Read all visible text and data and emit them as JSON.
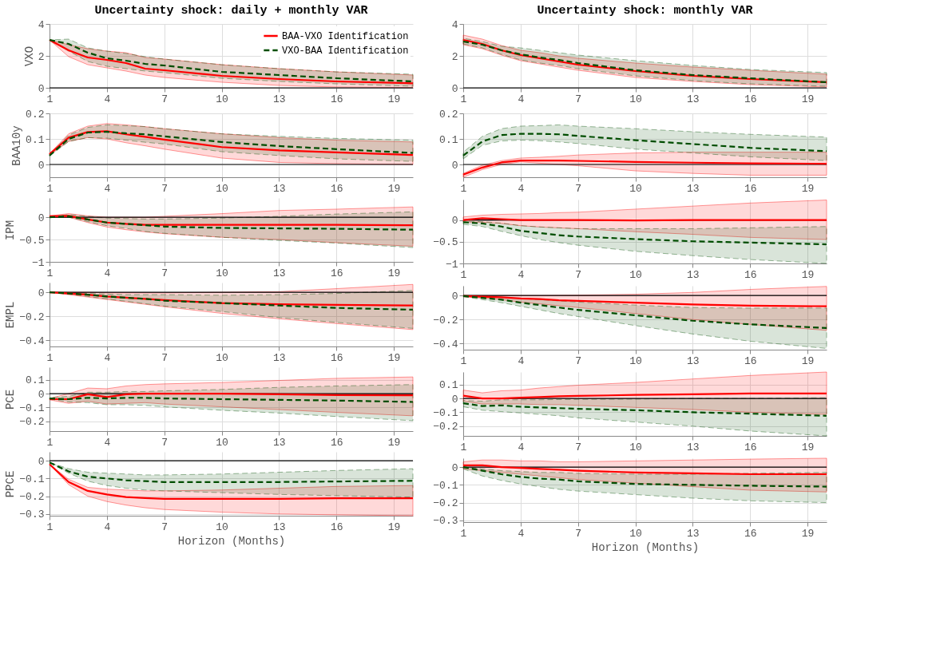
{
  "chart_data": [
    {
      "type": "line",
      "title": "Uncertainty shock: daily + monthly VAR",
      "ylabel": "VXO",
      "x": [
        1,
        2,
        3,
        4,
        5,
        6,
        7,
        10,
        13,
        16,
        20
      ],
      "xlim": [
        1,
        20
      ],
      "xticks": [
        1,
        4,
        7,
        10,
        13,
        16,
        19
      ],
      "ylim": [
        0,
        4
      ],
      "yticks": [
        0,
        2,
        4
      ],
      "grid": true,
      "legend": "top right",
      "ref_lines": [
        {
          "axis": "y",
          "value": 0,
          "color": "#000000"
        }
      ],
      "series": [
        {
          "name": "BAA-VXO Identification",
          "color": "#ff0000",
          "line_style": "solid",
          "values": [
            3.0,
            2.35,
            1.9,
            1.75,
            1.55,
            1.2,
            1.1,
            0.75,
            0.55,
            0.4,
            0.28
          ],
          "lower": [
            3.0,
            1.95,
            1.45,
            1.25,
            1.05,
            0.8,
            0.65,
            0.35,
            0.15,
            0.05,
            0.02
          ],
          "upper": [
            3.0,
            2.7,
            2.45,
            2.3,
            2.2,
            1.9,
            1.8,
            1.45,
            1.2,
            1.0,
            0.8
          ]
        },
        {
          "name": "VXO-BAA Identification",
          "color": "#004d00",
          "line_style": "dashed",
          "values": [
            3.0,
            2.75,
            2.2,
            1.85,
            1.7,
            1.5,
            1.4,
            1.0,
            0.8,
            0.6,
            0.4
          ],
          "lower": [
            3.0,
            2.3,
            1.65,
            1.35,
            1.2,
            1.05,
            0.95,
            0.6,
            0.4,
            0.25,
            0.1
          ],
          "upper": [
            3.0,
            3.05,
            2.5,
            2.3,
            2.15,
            1.95,
            1.8,
            1.45,
            1.2,
            1.0,
            0.85
          ]
        }
      ]
    },
    {
      "type": "line",
      "ylabel": "BAA10y",
      "x": [
        1,
        2,
        3,
        4,
        5,
        6,
        7,
        10,
        13,
        16,
        20
      ],
      "xlim": [
        1,
        20
      ],
      "xticks": [
        1,
        4,
        7,
        10,
        13,
        16,
        19
      ],
      "ylim": [
        -0.05,
        0.2
      ],
      "yticks": [
        0,
        0.1,
        0.2
      ],
      "grid": true,
      "ref_lines": [
        {
          "axis": "y",
          "value": 0,
          "color": "#000000"
        }
      ],
      "series": [
        {
          "color": "#ff0000",
          "line_style": "solid",
          "values": [
            0.04,
            0.105,
            0.127,
            0.13,
            0.118,
            0.108,
            0.097,
            0.068,
            0.055,
            0.047,
            0.037
          ],
          "lower": [
            0.037,
            0.09,
            0.105,
            0.1,
            0.085,
            0.073,
            0.06,
            0.025,
            0.008,
            0.003,
            0.0
          ],
          "upper": [
            0.042,
            0.12,
            0.15,
            0.16,
            0.155,
            0.148,
            0.14,
            0.12,
            0.105,
            0.095,
            0.088
          ]
        },
        {
          "color": "#004d00",
          "line_style": "dashed",
          "values": [
            0.035,
            0.1,
            0.125,
            0.128,
            0.122,
            0.118,
            0.11,
            0.088,
            0.072,
            0.06,
            0.045
          ],
          "lower": [
            0.033,
            0.09,
            0.105,
            0.103,
            0.095,
            0.087,
            0.08,
            0.05,
            0.035,
            0.022,
            0.012
          ],
          "upper": [
            0.037,
            0.115,
            0.145,
            0.155,
            0.152,
            0.148,
            0.14,
            0.12,
            0.11,
            0.102,
            0.095
          ]
        }
      ]
    },
    {
      "type": "line",
      "ylabel": "IPM",
      "x": [
        1,
        2,
        3,
        4,
        5,
        6,
        7,
        10,
        13,
        16,
        20
      ],
      "xlim": [
        1,
        20
      ],
      "xticks": [
        1,
        4,
        7,
        10,
        13,
        16,
        19
      ],
      "ylim": [
        -1,
        0.43
      ],
      "yticks": [
        -1,
        -0.5,
        0
      ],
      "grid": true,
      "ref_lines": [
        {
          "axis": "y",
          "value": 0,
          "color": "#000000"
        }
      ],
      "series": [
        {
          "color": "#ff0000",
          "line_style": "solid",
          "values": [
            0.02,
            0.03,
            -0.05,
            -0.12,
            -0.15,
            -0.17,
            -0.17,
            -0.17,
            -0.17,
            -0.17,
            -0.18
          ],
          "lower": [
            0.0,
            0.0,
            -0.12,
            -0.22,
            -0.28,
            -0.33,
            -0.37,
            -0.45,
            -0.5,
            -0.57,
            -0.65
          ],
          "upper": [
            0.03,
            0.08,
            0.03,
            0.0,
            0.0,
            0.0,
            0.02,
            0.08,
            0.15,
            0.18,
            0.23
          ]
        },
        {
          "color": "#004d00",
          "line_style": "dashed",
          "values": [
            0.0,
            0.02,
            -0.05,
            -0.12,
            -0.15,
            -0.18,
            -0.21,
            -0.24,
            -0.25,
            -0.26,
            -0.28
          ],
          "lower": [
            0.0,
            0.0,
            -0.1,
            -0.19,
            -0.25,
            -0.32,
            -0.36,
            -0.45,
            -0.52,
            -0.58,
            -0.68
          ],
          "upper": [
            0.0,
            0.06,
            0.02,
            -0.02,
            -0.03,
            -0.04,
            -0.04,
            -0.02,
            0.02,
            0.07,
            0.12
          ]
        }
      ]
    },
    {
      "type": "line",
      "ylabel": "EMPL",
      "x": [
        1,
        2,
        3,
        4,
        5,
        6,
        7,
        10,
        13,
        16,
        20
      ],
      "xlim": [
        1,
        20
      ],
      "xticks": [
        1,
        4,
        7,
        10,
        13,
        16,
        19
      ],
      "ylim": [
        -0.45,
        0.08
      ],
      "yticks": [
        -0.4,
        -0.2,
        0
      ],
      "grid": true,
      "ref_lines": [
        {
          "axis": "y",
          "value": 0,
          "color": "#000000"
        }
      ],
      "series": [
        {
          "color": "#ff0000",
          "line_style": "solid",
          "values": [
            0,
            -0.01,
            -0.02,
            -0.035,
            -0.045,
            -0.055,
            -0.065,
            -0.09,
            -0.1,
            -0.105,
            -0.11
          ],
          "lower": [
            0,
            -0.02,
            -0.04,
            -0.06,
            -0.08,
            -0.1,
            -0.12,
            -0.175,
            -0.22,
            -0.26,
            -0.31
          ],
          "upper": [
            0,
            0,
            0,
            -0.005,
            -0.005,
            -0.005,
            -0.005,
            0,
            0.005,
            0.03,
            0.065
          ]
        },
        {
          "color": "#004d00",
          "line_style": "dashed",
          "values": [
            0,
            -0.01,
            -0.02,
            -0.035,
            -0.045,
            -0.055,
            -0.07,
            -0.09,
            -0.11,
            -0.13,
            -0.145
          ],
          "lower": [
            0,
            -0.015,
            -0.035,
            -0.055,
            -0.075,
            -0.095,
            -0.115,
            -0.16,
            -0.21,
            -0.25,
            -0.3
          ],
          "upper": [
            0,
            -0.005,
            -0.01,
            -0.015,
            -0.02,
            -0.02,
            -0.02,
            -0.025,
            -0.02,
            -0.01,
            0.015
          ]
        }
      ]
    },
    {
      "type": "line",
      "ylabel": "PCE",
      "x": [
        1,
        2,
        3,
        4,
        5,
        6,
        7,
        10,
        13,
        16,
        20
      ],
      "xlim": [
        1,
        20
      ],
      "xticks": [
        1,
        4,
        7,
        10,
        13,
        16,
        19
      ],
      "ylim": [
        -0.27,
        0.19
      ],
      "yticks": [
        -0.2,
        -0.1,
        0,
        0.1
      ],
      "grid": true,
      "ref_lines": [
        {
          "axis": "y",
          "value": 0,
          "color": "#000000"
        }
      ],
      "series": [
        {
          "color": "#ff0000",
          "line_style": "solid",
          "values": [
            -0.04,
            -0.04,
            -0.005,
            -0.025,
            -0.005,
            0.0,
            0.0,
            0.0,
            -0.005,
            -0.01,
            -0.012
          ],
          "lower": [
            -0.045,
            -0.07,
            -0.055,
            -0.075,
            -0.07,
            -0.065,
            -0.075,
            -0.095,
            -0.115,
            -0.135,
            -0.16
          ],
          "upper": [
            -0.035,
            0.0,
            0.04,
            0.035,
            0.055,
            0.065,
            0.07,
            0.08,
            0.095,
            0.11,
            0.12
          ]
        },
        {
          "color": "#004d00",
          "line_style": "dashed",
          "values": [
            -0.035,
            -0.04,
            -0.03,
            -0.035,
            -0.03,
            -0.03,
            -0.035,
            -0.04,
            -0.045,
            -0.05,
            -0.06
          ],
          "lower": [
            -0.04,
            -0.06,
            -0.065,
            -0.08,
            -0.08,
            -0.085,
            -0.095,
            -0.12,
            -0.14,
            -0.165,
            -0.195
          ],
          "upper": [
            -0.03,
            -0.02,
            0.01,
            0.01,
            0.015,
            0.015,
            0.02,
            0.03,
            0.045,
            0.055,
            0.065
          ]
        }
      ]
    },
    {
      "type": "line",
      "ylabel": "PPCE",
      "xlabel": "Horizon (Months)",
      "x": [
        1,
        2,
        3,
        4,
        5,
        6,
        7,
        10,
        13,
        16,
        20
      ],
      "xlim": [
        1,
        20
      ],
      "xticks": [
        1,
        4,
        7,
        10,
        13,
        16,
        19
      ],
      "ylim": [
        -0.31,
        0.05
      ],
      "yticks": [
        -0.3,
        -0.2,
        -0.1,
        0
      ],
      "grid": true,
      "ref_lines": [
        {
          "axis": "y",
          "value": 0,
          "color": "#000000"
        }
      ],
      "series": [
        {
          "color": "#ff0000",
          "line_style": "solid",
          "values": [
            -0.02,
            -0.12,
            -0.17,
            -0.19,
            -0.205,
            -0.21,
            -0.215,
            -0.215,
            -0.215,
            -0.212,
            -0.212
          ],
          "lower": [
            -0.02,
            -0.135,
            -0.2,
            -0.23,
            -0.25,
            -0.265,
            -0.275,
            -0.29,
            -0.3,
            -0.305,
            -0.31
          ],
          "upper": [
            -0.02,
            -0.105,
            -0.15,
            -0.16,
            -0.165,
            -0.17,
            -0.17,
            -0.165,
            -0.155,
            -0.145,
            -0.14
          ]
        },
        {
          "color": "#004d00",
          "line_style": "dashed",
          "values": [
            -0.01,
            -0.06,
            -0.09,
            -0.1,
            -0.11,
            -0.115,
            -0.12,
            -0.12,
            -0.12,
            -0.117,
            -0.113
          ],
          "lower": [
            -0.01,
            -0.07,
            -0.115,
            -0.14,
            -0.155,
            -0.165,
            -0.17,
            -0.18,
            -0.19,
            -0.197,
            -0.205
          ],
          "upper": [
            -0.01,
            -0.045,
            -0.065,
            -0.07,
            -0.075,
            -0.08,
            -0.08,
            -0.075,
            -0.065,
            -0.055,
            -0.045
          ]
        }
      ]
    },
    {
      "type": "line",
      "title": "Uncertainty shock: monthly VAR",
      "x": [
        1,
        2,
        3,
        4,
        5,
        6,
        7,
        10,
        13,
        16,
        20
      ],
      "xlim": [
        1,
        20
      ],
      "xticks": [
        1,
        4,
        7,
        10,
        13,
        16,
        19
      ],
      "ylim": [
        0,
        4
      ],
      "yticks": [
        0,
        2,
        4
      ],
      "grid": true,
      "ref_lines": [
        {
          "axis": "y",
          "value": 0,
          "color": "#000000"
        }
      ],
      "series": [
        {
          "color": "#ff0000",
          "line_style": "solid",
          "values": [
            3.0,
            2.75,
            2.35,
            2.05,
            1.85,
            1.65,
            1.45,
            1.05,
            0.75,
            0.55,
            0.35
          ],
          "lower": [
            2.7,
            2.45,
            2.05,
            1.7,
            1.5,
            1.3,
            1.1,
            0.65,
            0.4,
            0.2,
            0.05
          ],
          "upper": [
            3.3,
            3.05,
            2.65,
            2.35,
            2.2,
            2.0,
            1.85,
            1.55,
            1.3,
            1.1,
            0.85
          ]
        },
        {
          "color": "#004d00",
          "line_style": "dashed",
          "values": [
            2.9,
            2.7,
            2.35,
            2.1,
            1.9,
            1.75,
            1.55,
            1.1,
            0.8,
            0.6,
            0.35
          ],
          "lower": [
            2.75,
            2.5,
            2.1,
            1.75,
            1.55,
            1.4,
            1.2,
            0.75,
            0.45,
            0.25,
            0.1
          ],
          "upper": [
            3.1,
            2.9,
            2.6,
            2.5,
            2.35,
            2.2,
            2.05,
            1.7,
            1.4,
            1.15,
            0.95
          ]
        }
      ]
    },
    {
      "type": "line",
      "x": [
        1,
        2,
        3,
        4,
        5,
        6,
        7,
        10,
        13,
        16,
        20
      ],
      "xlim": [
        1,
        20
      ],
      "xticks": [
        1,
        4,
        7,
        10,
        13,
        16,
        19
      ],
      "ylim": [
        -0.05,
        0.2
      ],
      "yticks": [
        0,
        0.1,
        0.2
      ],
      "grid": true,
      "ref_lines": [
        {
          "axis": "y",
          "value": 0,
          "color": "#000000"
        }
      ],
      "series": [
        {
          "color": "#ff0000",
          "line_style": "solid",
          "values": [
            -0.04,
            -0.012,
            0.008,
            0.015,
            0.015,
            0.015,
            0.014,
            0.01,
            0.007,
            0.004,
            0.003
          ],
          "lower": [
            -0.05,
            -0.02,
            0.0,
            0.01,
            0.005,
            0.0,
            -0.005,
            -0.025,
            -0.035,
            -0.042,
            -0.042
          ],
          "upper": [
            -0.035,
            -0.003,
            0.015,
            0.025,
            0.028,
            0.032,
            0.037,
            0.045,
            0.048,
            0.048,
            0.048
          ]
        },
        {
          "color": "#004d00",
          "line_style": "dashed",
          "values": [
            0.035,
            0.09,
            0.115,
            0.12,
            0.12,
            0.118,
            0.112,
            0.095,
            0.08,
            0.065,
            0.052
          ],
          "lower": [
            0.022,
            0.075,
            0.092,
            0.095,
            0.093,
            0.088,
            0.082,
            0.06,
            0.045,
            0.03,
            0.015
          ],
          "upper": [
            0.048,
            0.11,
            0.14,
            0.15,
            0.152,
            0.155,
            0.15,
            0.14,
            0.128,
            0.118,
            0.107
          ]
        }
      ]
    },
    {
      "type": "line",
      "x": [
        1,
        2,
        3,
        4,
        5,
        6,
        7,
        10,
        13,
        16,
        20
      ],
      "xlim": [
        1,
        20
      ],
      "xticks": [
        1,
        4,
        7,
        10,
        13,
        16,
        19
      ],
      "ylim": [
        -1,
        0.47
      ],
      "yticks": [
        -1,
        -0.5,
        0
      ],
      "grid": true,
      "ref_lines": [
        {
          "axis": "y",
          "value": 0,
          "color": "#000000"
        }
      ],
      "series": [
        {
          "color": "#ff0000",
          "line_style": "solid",
          "values": [
            0.0,
            0.04,
            0.02,
            0.0,
            0.0,
            0.0,
            0.0,
            -0.01,
            0.0,
            0.0,
            0.0
          ],
          "lower": [
            -0.05,
            -0.05,
            -0.08,
            -0.13,
            -0.16,
            -0.18,
            -0.2,
            -0.27,
            -0.33,
            -0.4,
            -0.45
          ],
          "upper": [
            0.07,
            0.11,
            0.13,
            0.14,
            0.15,
            0.17,
            0.18,
            0.25,
            0.32,
            0.39,
            0.46
          ]
        },
        {
          "color": "#004d00",
          "line_style": "dashed",
          "values": [
            -0.05,
            -0.08,
            -0.15,
            -0.25,
            -0.3,
            -0.35,
            -0.38,
            -0.44,
            -0.49,
            -0.52,
            -0.56
          ],
          "lower": [
            -0.1,
            -0.15,
            -0.26,
            -0.36,
            -0.45,
            -0.52,
            -0.58,
            -0.72,
            -0.82,
            -0.91,
            -1.0
          ],
          "upper": [
            -0.02,
            -0.04,
            -0.07,
            -0.13,
            -0.16,
            -0.18,
            -0.2,
            -0.2,
            -0.2,
            -0.18,
            -0.15
          ]
        }
      ]
    },
    {
      "type": "line",
      "x": [
        1,
        2,
        3,
        4,
        5,
        6,
        7,
        10,
        13,
        16,
        20
      ],
      "xlim": [
        1,
        20
      ],
      "xticks": [
        1,
        4,
        7,
        10,
        13,
        16,
        19
      ],
      "ylim": [
        -0.45,
        0.08
      ],
      "yticks": [
        -0.4,
        -0.2,
        0
      ],
      "grid": true,
      "ref_lines": [
        {
          "axis": "y",
          "value": 0,
          "color": "#000000"
        }
      ],
      "series": [
        {
          "color": "#ff0000",
          "line_style": "solid",
          "values": [
            -0.005,
            -0.01,
            -0.015,
            -0.025,
            -0.03,
            -0.04,
            -0.045,
            -0.06,
            -0.075,
            -0.085,
            -0.09
          ],
          "lower": [
            -0.01,
            -0.02,
            -0.035,
            -0.055,
            -0.07,
            -0.085,
            -0.1,
            -0.15,
            -0.2,
            -0.24,
            -0.29
          ],
          "upper": [
            0.0,
            0.0,
            0.0,
            0.0,
            0.0,
            0.002,
            0.003,
            0.01,
            0.025,
            0.05,
            0.075
          ]
        },
        {
          "color": "#004d00",
          "line_style": "dashed",
          "values": [
            -0.005,
            -0.02,
            -0.035,
            -0.06,
            -0.08,
            -0.1,
            -0.12,
            -0.165,
            -0.21,
            -0.24,
            -0.27
          ],
          "lower": [
            -0.01,
            -0.035,
            -0.06,
            -0.09,
            -0.12,
            -0.15,
            -0.175,
            -0.25,
            -0.32,
            -0.38,
            -0.44
          ],
          "upper": [
            0.0,
            -0.005,
            -0.015,
            -0.025,
            -0.035,
            -0.045,
            -0.055,
            -0.08,
            -0.1,
            -0.105,
            -0.105
          ]
        }
      ]
    },
    {
      "type": "line",
      "x": [
        1,
        2,
        3,
        4,
        5,
        6,
        7,
        10,
        13,
        16,
        20
      ],
      "xlim": [
        1,
        20
      ],
      "xticks": [
        1,
        4,
        7,
        10,
        13,
        16,
        19
      ],
      "ylim": [
        -0.27,
        0.19
      ],
      "yticks": [
        -0.2,
        -0.1,
        0,
        0.1
      ],
      "grid": true,
      "ref_lines": [
        {
          "axis": "y",
          "value": 0,
          "color": "#000000"
        }
      ],
      "series": [
        {
          "color": "#ff0000",
          "line_style": "solid",
          "values": [
            0.02,
            0.0,
            0.0,
            0.005,
            0.01,
            0.015,
            0.018,
            0.025,
            0.03,
            0.035,
            0.035
          ],
          "lower": [
            -0.02,
            -0.04,
            -0.04,
            -0.04,
            -0.045,
            -0.045,
            -0.05,
            -0.065,
            -0.08,
            -0.1,
            -0.115
          ],
          "upper": [
            0.06,
            0.04,
            0.055,
            0.06,
            0.075,
            0.085,
            0.095,
            0.115,
            0.14,
            0.165,
            0.19
          ]
        },
        {
          "color": "#004d00",
          "line_style": "dashed",
          "values": [
            -0.035,
            -0.055,
            -0.05,
            -0.06,
            -0.065,
            -0.07,
            -0.075,
            -0.085,
            -0.1,
            -0.11,
            -0.125
          ],
          "lower": [
            -0.06,
            -0.085,
            -0.095,
            -0.105,
            -0.115,
            -0.125,
            -0.14,
            -0.17,
            -0.2,
            -0.235,
            -0.27
          ],
          "upper": [
            -0.015,
            -0.02,
            -0.01,
            -0.01,
            -0.01,
            -0.008,
            -0.007,
            -0.005,
            0.0,
            0.0,
            0.005
          ]
        }
      ]
    },
    {
      "type": "line",
      "xlabel": "Horizon (Months)",
      "x": [
        1,
        2,
        3,
        4,
        5,
        6,
        7,
        10,
        13,
        16,
        20
      ],
      "xlim": [
        1,
        20
      ],
      "xticks": [
        1,
        4,
        7,
        10,
        13,
        16,
        19
      ],
      "ylim": [
        -0.31,
        0.05
      ],
      "yticks": [
        -0.3,
        -0.2,
        -0.1,
        0
      ],
      "grid": true,
      "ref_lines": [
        {
          "axis": "y",
          "value": 0,
          "color": "#000000"
        }
      ],
      "series": [
        {
          "color": "#ff0000",
          "line_style": "solid",
          "values": [
            0.01,
            0.01,
            0.0,
            -0.005,
            -0.01,
            -0.015,
            -0.02,
            -0.03,
            -0.035,
            -0.04,
            -0.04
          ],
          "lower": [
            -0.01,
            -0.02,
            -0.03,
            -0.04,
            -0.05,
            -0.06,
            -0.07,
            -0.09,
            -0.11,
            -0.13,
            -0.14
          ],
          "upper": [
            0.03,
            0.04,
            0.04,
            0.035,
            0.035,
            0.03,
            0.03,
            0.035,
            0.04,
            0.045,
            0.05
          ]
        },
        {
          "color": "#004d00",
          "line_style": "dashed",
          "values": [
            0.0,
            -0.02,
            -0.04,
            -0.055,
            -0.065,
            -0.07,
            -0.08,
            -0.095,
            -0.1,
            -0.105,
            -0.11
          ],
          "lower": [
            -0.01,
            -0.05,
            -0.075,
            -0.095,
            -0.11,
            -0.125,
            -0.135,
            -0.155,
            -0.175,
            -0.19,
            -0.2
          ],
          "upper": [
            0.0,
            -0.01,
            -0.02,
            -0.025,
            -0.03,
            -0.03,
            -0.035,
            -0.04,
            -0.04,
            -0.035,
            -0.03
          ]
        }
      ]
    }
  ]
}
